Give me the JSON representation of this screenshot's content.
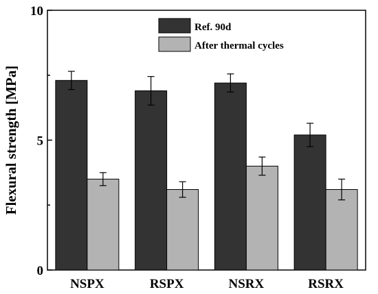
{
  "chart_data": {
    "type": "bar",
    "title": "",
    "xlabel": "",
    "ylabel": "Flexural strength [MPa]",
    "ylim": [
      0,
      10
    ],
    "yticks": [
      "0",
      "5",
      "10"
    ],
    "categories": [
      "NSPX",
      "RSPX",
      "NSRX",
      "RSRX"
    ],
    "series": [
      {
        "name": "Ref. 90d",
        "color": "#333333",
        "values": [
          7.3,
          6.9,
          7.2,
          5.2
        ],
        "errors": [
          0.35,
          0.55,
          0.35,
          0.45
        ]
      },
      {
        "name": "After thermal cycles",
        "color": "#b3b3b3",
        "values": [
          3.5,
          3.1,
          4.0,
          3.1
        ],
        "errors": [
          0.25,
          0.3,
          0.35,
          0.4
        ]
      }
    ],
    "legend": "top-center",
    "grid": false
  }
}
